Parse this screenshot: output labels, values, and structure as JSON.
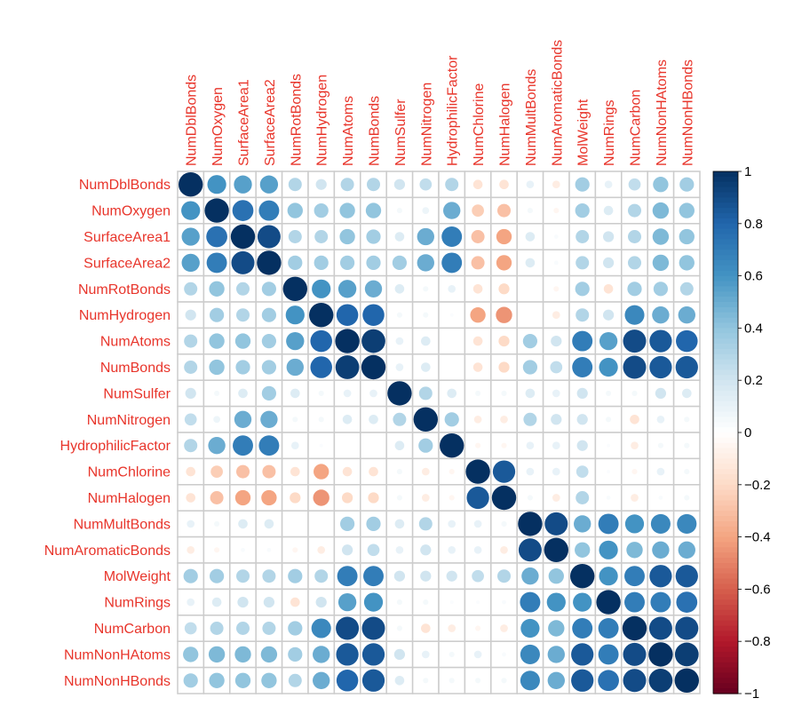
{
  "chart_data": {
    "type": "heatmap",
    "title": "",
    "variables": [
      "NumDblBonds",
      "NumOxygen",
      "SurfaceArea1",
      "SurfaceArea2",
      "NumRotBonds",
      "NumHydrogen",
      "NumAtoms",
      "NumBonds",
      "NumSulfer",
      "NumNitrogen",
      "HydrophilicFactor",
      "NumChlorine",
      "NumHalogen",
      "NumMultBonds",
      "NumAromaticBonds",
      "MolWeight",
      "NumRings",
      "NumCarbon",
      "NumNonHAtoms",
      "NumNonHBonds"
    ],
    "upper_triangle": [
      [
        1,
        0.6,
        0.55,
        0.55,
        0.3,
        0.2,
        0.3,
        0.3,
        0.2,
        0.25,
        0.3,
        -0.15,
        -0.15,
        0.1,
        -0.1,
        0.35,
        0.1,
        0.25,
        0.4,
        0.35
      ],
      [
        1,
        0.75,
        0.7,
        0.4,
        0.35,
        0.4,
        0.4,
        0.05,
        0.08,
        0.5,
        -0.25,
        -0.3,
        0.05,
        -0.05,
        0.35,
        0.15,
        0.3,
        0.45,
        0.4
      ],
      [
        1,
        0.9,
        0.3,
        0.3,
        0.4,
        0.35,
        0.15,
        0.5,
        0.7,
        -0.3,
        -0.4,
        0.15,
        0.03,
        0.3,
        0.2,
        0.3,
        0.45,
        0.4
      ],
      [
        1,
        0.35,
        0.35,
        0.35,
        0.35,
        0.35,
        0.5,
        0.7,
        -0.3,
        -0.4,
        0.15,
        0.03,
        0.3,
        0.2,
        0.3,
        0.45,
        0.4
      ],
      [
        1,
        0.6,
        0.55,
        0.5,
        0.15,
        0.05,
        0.1,
        -0.15,
        -0.2,
        0,
        -0.05,
        0.35,
        -0.15,
        0.35,
        0.35,
        0.3
      ],
      [
        1,
        0.8,
        0.8,
        0.05,
        0.05,
        0.02,
        -0.4,
        -0.45,
        0,
        -0.1,
        0.3,
        0.2,
        0.65,
        0.5,
        0.5
      ],
      [
        1,
        0.95,
        0.1,
        0.15,
        0,
        -0.15,
        -0.2,
        0.35,
        0.2,
        0.7,
        0.55,
        0.9,
        0.85,
        0.8
      ],
      [
        1,
        0.1,
        0.15,
        0,
        -0.15,
        -0.2,
        0.35,
        0.25,
        0.7,
        0.6,
        0.9,
        0.85,
        0.85
      ],
      [
        1,
        0.3,
        0.15,
        0.05,
        0.05,
        0.15,
        0.1,
        0.2,
        0.05,
        0.05,
        0.2,
        0.15
      ],
      [
        1,
        0.35,
        -0.1,
        -0.1,
        0.3,
        0.2,
        0.2,
        0.05,
        -0.15,
        0.1,
        0.05
      ],
      [
        1,
        -0.05,
        -0.05,
        0.1,
        0.1,
        0.2,
        0.02,
        -0.1,
        0.05,
        0.05
      ],
      [
        1,
        0.85,
        0.1,
        0.1,
        0.25,
        0.02,
        -0.05,
        0.1,
        0.05
      ],
      [
        1,
        0.05,
        -0.1,
        0.3,
        0.03,
        -0.1,
        0.03,
        0.05
      ],
      [
        1,
        0.9,
        0.5,
        0.7,
        0.6,
        0.65,
        0.65
      ],
      [
        1,
        0.4,
        0.6,
        0.45,
        0.5,
        0.5
      ],
      [
        1,
        0.6,
        0.7,
        0.85,
        0.85
      ],
      [
        1,
        0.7,
        0.7,
        0.75
      ],
      [
        1,
        0.9,
        0.9
      ],
      [
        1,
        0.95
      ],
      [
        1
      ]
    ],
    "colorbar": {
      "range": [
        -1,
        1
      ],
      "ticks": [
        "1",
        "0.8",
        "0.6",
        "0.4",
        "0.2",
        "0",
        "−0.2",
        "−0.4",
        "−0.6",
        "−0.8",
        "−1"
      ],
      "palette": [
        "#67001F",
        "#B2182B",
        "#D6604D",
        "#F4A582",
        "#FDDBC7",
        "#FFFFFF",
        "#D1E5F0",
        "#92C5DE",
        "#4393C3",
        "#2166AC",
        "#053061"
      ]
    },
    "method": "circle",
    "grid": true,
    "legend_placement": "right"
  }
}
